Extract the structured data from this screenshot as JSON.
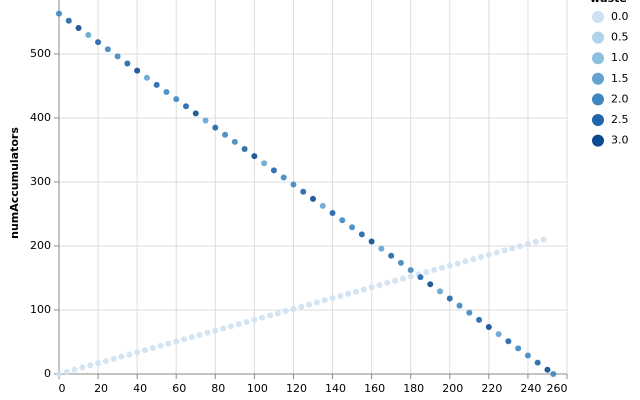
{
  "chart_data": {
    "type": "scatter",
    "y_label": "numAccumulators",
    "legend_title": "waste",
    "legend": [
      {
        "value": 0,
        "label": "0.0",
        "color": "#cfe1f2"
      },
      {
        "value": 0.5,
        "label": "0.5",
        "color": "#b0d2e8"
      },
      {
        "value": 1,
        "label": "1.0",
        "color": "#8bbfde"
      },
      {
        "value": 1.5,
        "label": "1.5",
        "color": "#62a4cf"
      },
      {
        "value": 2,
        "label": "2.0",
        "color": "#3f87c0"
      },
      {
        "value": 2.5,
        "label": "2.5",
        "color": "#1f65aa"
      },
      {
        "value": 3,
        "label": "3.0",
        "color": "#0d4a8f"
      }
    ],
    "xlim": [
      0,
      260
    ],
    "ylim": [
      0,
      600
    ],
    "xticks": [
      0,
      20,
      40,
      60,
      80,
      100,
      120,
      140,
      160,
      180,
      200,
      220,
      240,
      260
    ],
    "yticks": [
      0,
      100,
      200,
      300,
      400,
      500
    ],
    "grid": true,
    "series": [
      {
        "x": [
          0,
          4,
          8,
          12,
          16,
          20,
          24,
          28,
          32,
          36,
          40,
          44,
          48,
          52,
          56,
          60,
          64,
          68,
          72,
          76,
          80,
          84,
          88,
          92,
          96,
          100,
          104,
          108,
          112,
          116,
          120,
          124,
          128,
          132,
          136,
          140,
          144,
          148,
          152,
          156,
          160,
          164,
          168,
          172,
          176,
          180,
          184,
          188,
          192,
          196,
          200,
          204,
          208,
          212,
          216,
          220,
          224,
          228,
          232,
          236,
          240,
          244,
          248
        ],
        "values": [
          0,
          3.4,
          6.8,
          10.2,
          13.5,
          16.9,
          20.3,
          23.7,
          27.1,
          30.5,
          33.9,
          37.3,
          40.6,
          44,
          47.4,
          50.8,
          54.2,
          57.6,
          61,
          64.4,
          67.7,
          71.1,
          74.5,
          77.9,
          81.3,
          84.7,
          88.1,
          91.5,
          94.8,
          98.2,
          101.6,
          105,
          108.4,
          111.8,
          115.2,
          118.6,
          121.9,
          125.3,
          128.7,
          132.1,
          135.5,
          138.9,
          142.3,
          145.6,
          149,
          152.4,
          155.8,
          159.2,
          162.6,
          166,
          169.4,
          172.7,
          176.1,
          179.5,
          182.9,
          186.3,
          189.7,
          193.1,
          196.5,
          199.8,
          203.2,
          206.6,
          210
        ],
        "waste": [
          0,
          0,
          0,
          0,
          0,
          0,
          0,
          0,
          0,
          0,
          0,
          0,
          0,
          0,
          0,
          0,
          0,
          0,
          0,
          0,
          0,
          0,
          0,
          0,
          0,
          0,
          0,
          0,
          0,
          0,
          0,
          0,
          0,
          0,
          0,
          0,
          0,
          0,
          0,
          0,
          0,
          0,
          0,
          0,
          0,
          0,
          0,
          0,
          0,
          0,
          0,
          0,
          0,
          0,
          0,
          0,
          0,
          0,
          0,
          0,
          0,
          0,
          0
        ]
      },
      {
        "x": [
          0,
          5,
          10,
          15,
          20,
          25,
          30,
          35,
          40,
          45,
          50,
          55,
          60,
          65,
          70,
          75,
          80,
          85,
          90,
          95,
          100,
          105,
          110,
          115,
          120,
          125,
          130,
          135,
          140,
          145,
          150,
          155,
          160,
          165,
          170,
          175,
          180,
          185,
          190,
          195,
          200,
          205,
          210,
          215,
          220,
          225,
          230,
          235,
          240,
          245,
          250,
          253
        ],
        "values": [
          563,
          551.9,
          540.7,
          529.6,
          518.5,
          507.4,
          496.2,
          485.1,
          474,
          462.9,
          451.7,
          440.6,
          429.5,
          418.4,
          407.2,
          396.1,
          385,
          373.8,
          362.7,
          351.6,
          340.5,
          329.3,
          318.2,
          307.1,
          296,
          284.8,
          273.7,
          262.6,
          251.5,
          240.3,
          229.2,
          218.1,
          207,
          195.8,
          184.7,
          173.6,
          162.4,
          151.3,
          140.2,
          129.1,
          117.9,
          106.8,
          95.7,
          84.6,
          73.4,
          62.3,
          51.2,
          40.1,
          28.9,
          17.8,
          6.7,
          0
        ],
        "waste": [
          2,
          2.5,
          3,
          1.5,
          2.5,
          2,
          2,
          2.5,
          3,
          1.5,
          2.5,
          2,
          2,
          2.5,
          3,
          1.5,
          2.5,
          2,
          2,
          2.5,
          3,
          1.5,
          2.5,
          2,
          2,
          2.5,
          3,
          1.5,
          2.5,
          2,
          2,
          2.5,
          3,
          1.5,
          2.5,
          2,
          2,
          2.5,
          3,
          1.5,
          2.5,
          2,
          2,
          2.5,
          3,
          1.5,
          2.5,
          2,
          2,
          2.5,
          3,
          2
        ]
      }
    ]
  }
}
